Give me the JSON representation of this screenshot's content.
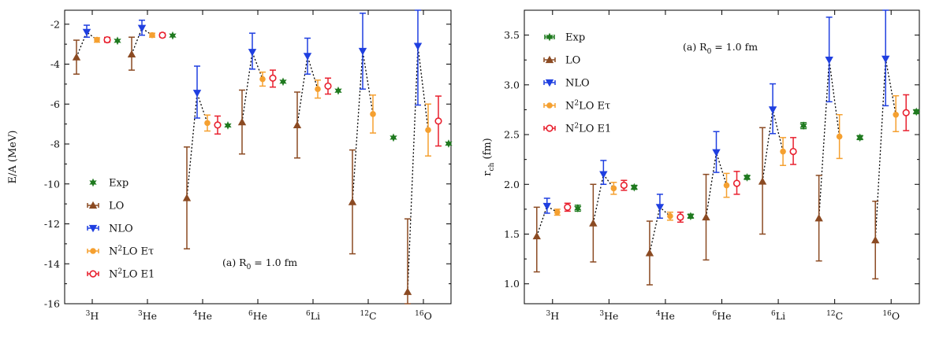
{
  "colors": {
    "Exp": "#1f7a1f",
    "LO": "#8b4a22",
    "NLO": "#1f3fe0",
    "N2LO_Etau": "#f5a030",
    "N2LO_E1": "#e8202e"
  },
  "series_style": {
    "Exp": {
      "marker": "star",
      "filled": true
    },
    "LO": {
      "marker": "triangle-up",
      "filled": true
    },
    "NLO": {
      "marker": "triangle-down",
      "filled": true
    },
    "N2LO_Etau": {
      "marker": "circle",
      "filled": true
    },
    "N2LO_E1": {
      "marker": "circle",
      "filled": false
    }
  },
  "chart_data": [
    {
      "type": "scatter",
      "ylabel": "E/A (MeV)",
      "ylim": [
        -16,
        -1.3
      ],
      "yticks": [
        -16,
        -14,
        -12,
        -10,
        -8,
        -6,
        -4,
        -2
      ],
      "ytick_labels": [
        "-16",
        "-14",
        "-12",
        "-10",
        "-8",
        "-6",
        "-4",
        "-2"
      ],
      "categories": [
        {
          "sup": "3",
          "base": "H"
        },
        {
          "sup": "3",
          "base": "He"
        },
        {
          "sup": "4",
          "base": "He"
        },
        {
          "sup": "6",
          "base": "He"
        },
        {
          "sup": "6",
          "base": "Li"
        },
        {
          "sup": "12",
          "base": "C"
        },
        {
          "sup": "16",
          "base": "O"
        }
      ],
      "annotation": {
        "prefix": "(a)  R",
        "sub": "0",
        "suffix": " = 1.0 fm"
      },
      "legend": {
        "placement": "lower-left",
        "entries": [
          {
            "key": "Exp",
            "base": "Exp",
            "sup": "",
            "tail": ""
          },
          {
            "key": "LO",
            "base": "LO",
            "sup": "",
            "tail": ""
          },
          {
            "key": "NLO",
            "base": "NLO",
            "sup": "",
            "tail": ""
          },
          {
            "key": "N2LO_Etau",
            "base": "N",
            "sup": "2",
            "tail": "LO Eτ"
          },
          {
            "key": "N2LO_E1",
            "base": "N",
            "sup": "2",
            "tail": "LO E1"
          }
        ]
      },
      "series": [
        {
          "key": "LO",
          "values": [
            -3.65,
            -3.5,
            -10.7,
            -6.9,
            -7.05,
            -10.9,
            -15.4
          ],
          "err_low": [
            -4.5,
            -4.3,
            -13.25,
            -8.5,
            -8.7,
            -13.5,
            -16.0
          ],
          "err_high": [
            -2.8,
            -2.65,
            -8.15,
            -5.3,
            -5.4,
            -8.3,
            -11.75
          ]
        },
        {
          "key": "NLO",
          "values": [
            -2.4,
            -2.2,
            -5.45,
            -3.4,
            -3.6,
            -3.35,
            -3.1
          ],
          "err_low": [
            -2.65,
            -2.55,
            -6.7,
            -4.25,
            -4.5,
            -5.25,
            -6.05
          ],
          "err_high": [
            -2.05,
            -1.8,
            -4.1,
            -2.45,
            -2.7,
            -1.45,
            -1.3
          ]
        },
        {
          "key": "N2LO_Etau",
          "values": [
            -2.78,
            -2.55,
            -6.95,
            -4.75,
            -5.25,
            -6.5,
            -7.3
          ],
          "err_low": [
            -2.9,
            -2.65,
            -7.35,
            -5.1,
            -5.7,
            -7.45,
            -8.6
          ],
          "err_high": [
            -2.68,
            -2.45,
            -6.55,
            -4.4,
            -4.8,
            -5.55,
            -6.0
          ]
        },
        {
          "key": "N2LO_E1",
          "values": [
            -2.78,
            -2.55,
            -7.05,
            -4.7,
            -5.1,
            null,
            -6.85
          ],
          "err_low": [
            -2.9,
            -2.65,
            -7.5,
            -5.15,
            -5.5,
            null,
            -8.1
          ],
          "err_high": [
            -2.66,
            -2.45,
            -6.6,
            -4.3,
            -4.7,
            null,
            -5.6
          ]
        },
        {
          "key": "Exp",
          "values": [
            -2.83,
            -2.57,
            -7.07,
            -4.88,
            -5.33,
            -7.68,
            -7.98
          ],
          "err_low": [
            null,
            null,
            null,
            null,
            null,
            null,
            null
          ],
          "err_high": [
            null,
            null,
            null,
            null,
            null,
            null,
            null
          ]
        }
      ]
    },
    {
      "type": "scatter",
      "ylabel": "r_ch (fm)",
      "ylim": [
        0.8,
        3.75
      ],
      "yticks": [
        1.0,
        1.5,
        2.0,
        2.5,
        3.0,
        3.5
      ],
      "ytick_labels": [
        "1.0",
        "1.5",
        "2.0",
        "2.5",
        "3.0",
        "3.5"
      ],
      "categories": [
        {
          "sup": "3",
          "base": "H"
        },
        {
          "sup": "3",
          "base": "He"
        },
        {
          "sup": "4",
          "base": "He"
        },
        {
          "sup": "6",
          "base": "He"
        },
        {
          "sup": "6",
          "base": "Li"
        },
        {
          "sup": "12",
          "base": "C"
        },
        {
          "sup": "16",
          "base": "O"
        }
      ],
      "annotation": {
        "prefix": "(a)  R",
        "sub": "0",
        "suffix": " = 1.0 fm"
      },
      "legend": {
        "placement": "upper-left",
        "entries": [
          {
            "key": "Exp",
            "base": "Exp",
            "sup": "",
            "tail": ""
          },
          {
            "key": "LO",
            "base": "LO",
            "sup": "",
            "tail": ""
          },
          {
            "key": "NLO",
            "base": "NLO",
            "sup": "",
            "tail": ""
          },
          {
            "key": "N2LO_Etau",
            "base": "N",
            "sup": "2",
            "tail": "LO Eτ"
          },
          {
            "key": "N2LO_E1",
            "base": "N",
            "sup": "2",
            "tail": "LO E1"
          }
        ]
      },
      "series": [
        {
          "key": "LO",
          "values": [
            1.48,
            1.61,
            1.31,
            1.67,
            2.03,
            1.66,
            1.44
          ],
          "err_low": [
            1.12,
            1.22,
            0.99,
            1.24,
            1.5,
            1.23,
            1.05
          ],
          "err_high": [
            1.77,
            2.0,
            1.63,
            2.1,
            2.57,
            2.09,
            1.83
          ]
        },
        {
          "key": "NLO",
          "values": [
            1.78,
            2.1,
            1.77,
            2.32,
            2.75,
            3.25,
            3.26
          ],
          "err_low": [
            1.71,
            2.0,
            1.66,
            2.12,
            2.51,
            2.83,
            2.79
          ],
          "err_high": [
            1.86,
            2.24,
            1.9,
            2.53,
            3.01,
            3.68,
            3.75
          ]
        },
        {
          "key": "N2LO_Etau",
          "values": [
            1.72,
            1.96,
            1.68,
            1.99,
            2.33,
            2.48,
            2.7
          ],
          "err_low": [
            1.69,
            1.9,
            1.64,
            1.87,
            2.19,
            2.26,
            2.53
          ],
          "err_high": [
            1.75,
            2.02,
            1.72,
            2.11,
            2.47,
            2.7,
            2.89
          ]
        },
        {
          "key": "N2LO_E1",
          "values": [
            1.77,
            1.99,
            1.67,
            2.01,
            2.33,
            null,
            2.72
          ],
          "err_low": [
            1.73,
            1.94,
            1.62,
            1.9,
            2.2,
            null,
            2.54
          ],
          "err_high": [
            1.81,
            2.04,
            1.72,
            2.13,
            2.47,
            null,
            2.9
          ]
        },
        {
          "key": "Exp",
          "values": [
            1.76,
            1.97,
            1.68,
            2.07,
            2.59,
            2.47,
            2.73
          ],
          "err_low": [
            1.73,
            1.95,
            1.66,
            2.05,
            2.56,
            2.45,
            2.71
          ],
          "err_high": [
            1.79,
            1.99,
            1.7,
            2.09,
            2.62,
            2.49,
            2.75
          ]
        }
      ]
    }
  ]
}
